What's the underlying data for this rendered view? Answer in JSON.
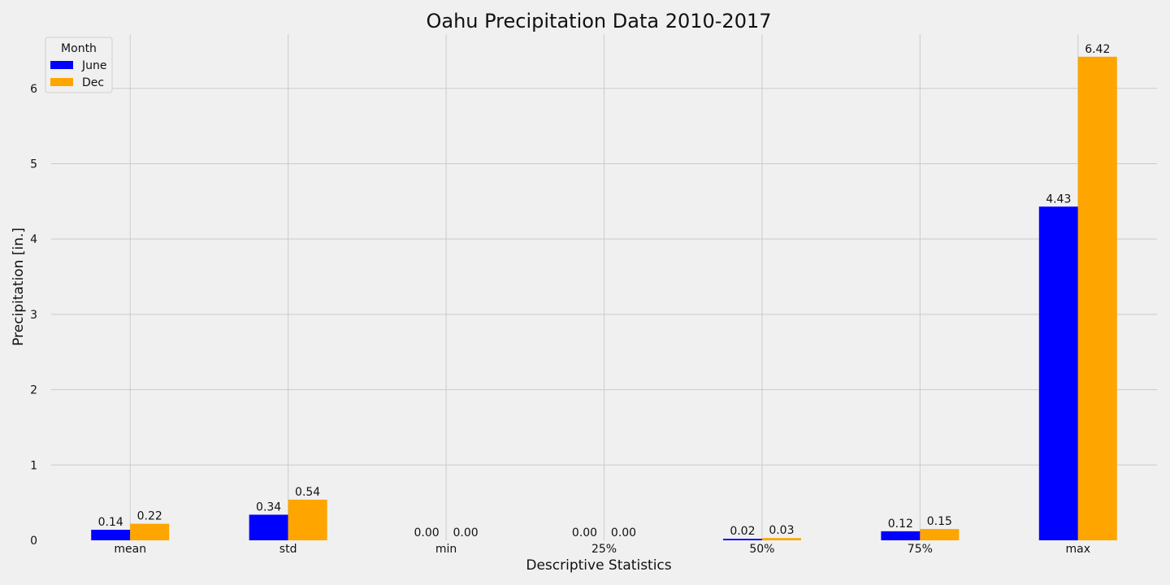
{
  "chart_data": {
    "type": "bar",
    "title": "Oahu Precipitation Data 2010-2017",
    "xlabel": "Descriptive Statistics",
    "ylabel": "Precipitation [in.]",
    "categories": [
      "mean",
      "std",
      "min",
      "25%",
      "50%",
      "75%",
      "max"
    ],
    "series": [
      {
        "name": "June",
        "color": "#0000ff",
        "values": [
          0.14,
          0.34,
          0.0,
          0.0,
          0.02,
          0.12,
          4.43
        ],
        "labels": [
          "0.14",
          "0.34",
          "0.00",
          "0.00",
          "0.02",
          "0.12",
          "4.43"
        ]
      },
      {
        "name": "Dec",
        "color": "#ffa500",
        "values": [
          0.22,
          0.54,
          0.0,
          0.0,
          0.03,
          0.15,
          6.42
        ],
        "labels": [
          "0.22",
          "0.54",
          "0.00",
          "0.00",
          "0.03",
          "0.15",
          "6.42"
        ]
      }
    ],
    "ylim": [
      0,
      6.72
    ],
    "yticks": [
      0,
      1,
      2,
      3,
      4,
      5,
      6
    ],
    "grid": true,
    "legend": {
      "title": "Month",
      "position": "top-left"
    }
  }
}
